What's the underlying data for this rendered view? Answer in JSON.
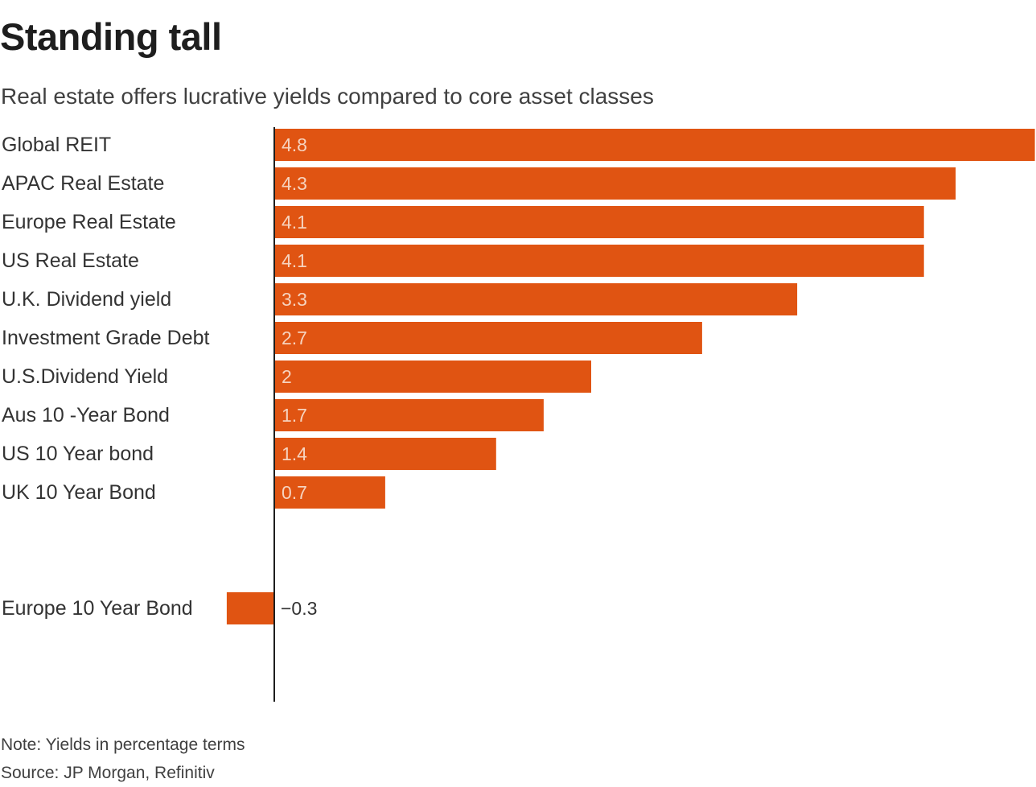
{
  "header": {
    "title": "Standing tall",
    "subtitle": "Real estate offers lucrative yields compared to core asset classes"
  },
  "footer": {
    "note": "Note: Yields in percentage terms",
    "source": "Source: JP Morgan, Refinitiv"
  },
  "colors": {
    "bar": "#e05412",
    "axis": "#1e1e1e",
    "label_inside": "#f6d3bf",
    "label_outside": "#333333",
    "category": "#333333"
  },
  "chart_data": {
    "type": "bar",
    "orientation": "horizontal",
    "title": "Standing tall",
    "subtitle": "Real estate offers lucrative yields compared to core asset classes",
    "xlabel": "",
    "ylabel": "",
    "grid": false,
    "xlim": [
      -0.31,
      4.8
    ],
    "categories": [
      "Global REIT",
      "APAC Real Estate",
      "Europe Real Estate",
      "US Real Estate",
      "U.K. Dividend yield",
      "Investment Grade Debt",
      "U.S.Dividend Yield",
      "Aus 10 -Year Bond",
      "US 10 Year bond",
      "UK 10 Year Bond",
      "Europe 10 Year Bond"
    ],
    "values": [
      4.8,
      4.3,
      4.1,
      4.1,
      3.3,
      2.7,
      2,
      1.7,
      1.4,
      0.7,
      -0.3
    ],
    "value_labels": [
      "4.8",
      "4.3",
      "4.1",
      "4.1",
      "3.3",
      "2.7",
      "2",
      "1.7",
      "1.4",
      "0.7",
      "−0.3"
    ],
    "group_break_before_index": 10
  }
}
